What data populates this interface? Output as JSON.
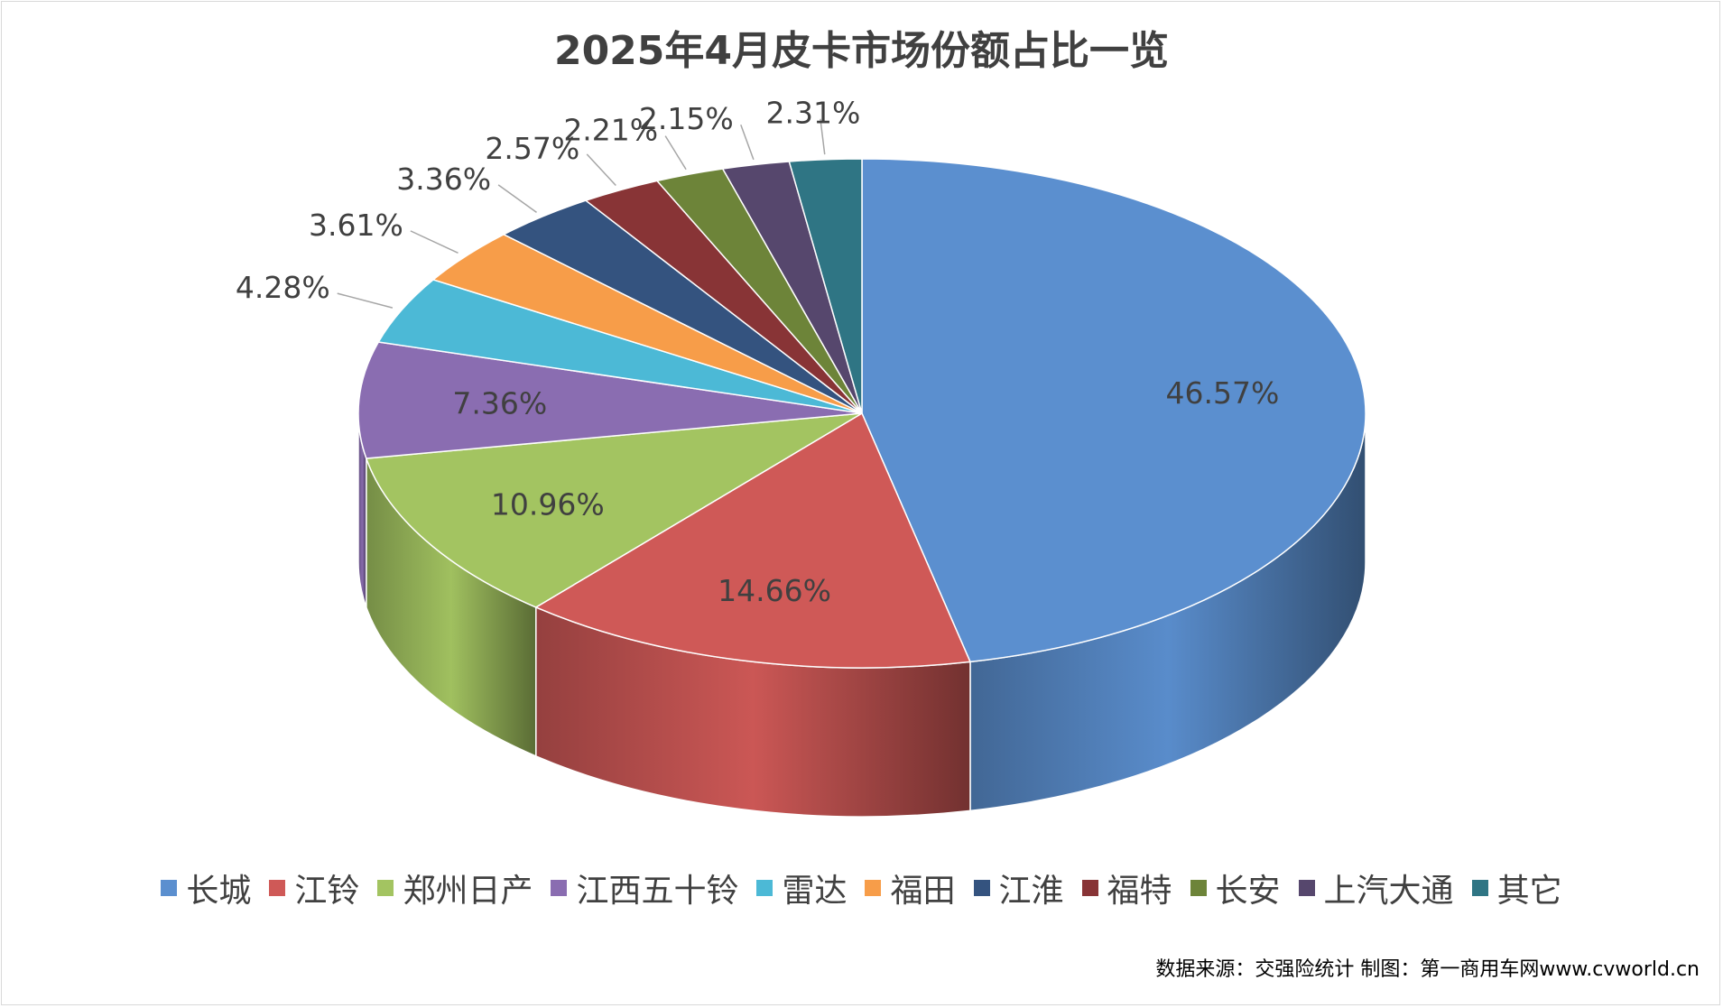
{
  "chart_data": {
    "type": "pie",
    "title": "2025年4月皮卡市场份额占比一览",
    "categories": [
      "长城",
      "江铃",
      "郑州日产",
      "江西五十铃",
      "雷达",
      "福田",
      "江淮",
      "福特",
      "长安",
      "上汽大通",
      "其它"
    ],
    "values": [
      46.57,
      14.66,
      10.96,
      7.36,
      4.28,
      3.61,
      3.36,
      2.57,
      2.21,
      2.15,
      2.31
    ],
    "data_labels": [
      "46.57%",
      "14.66%",
      "10.96%",
      "7.36%",
      "4.28%",
      "3.61%",
      "3.36%",
      "2.57%",
      "2.21%",
      "2.15%",
      "2.31%"
    ],
    "colors": [
      "#5b8fcf",
      "#cf5957",
      "#a3c461",
      "#8a6db1",
      "#4cb9d6",
      "#f79d49",
      "#34537f",
      "#883436",
      "#6d8439",
      "#56476d",
      "#2f7584"
    ],
    "legend_position": "bottom",
    "style": "3d"
  },
  "source_note": "数据来源：交强险统计 制图：第一商用车网www.cvworld.cn"
}
